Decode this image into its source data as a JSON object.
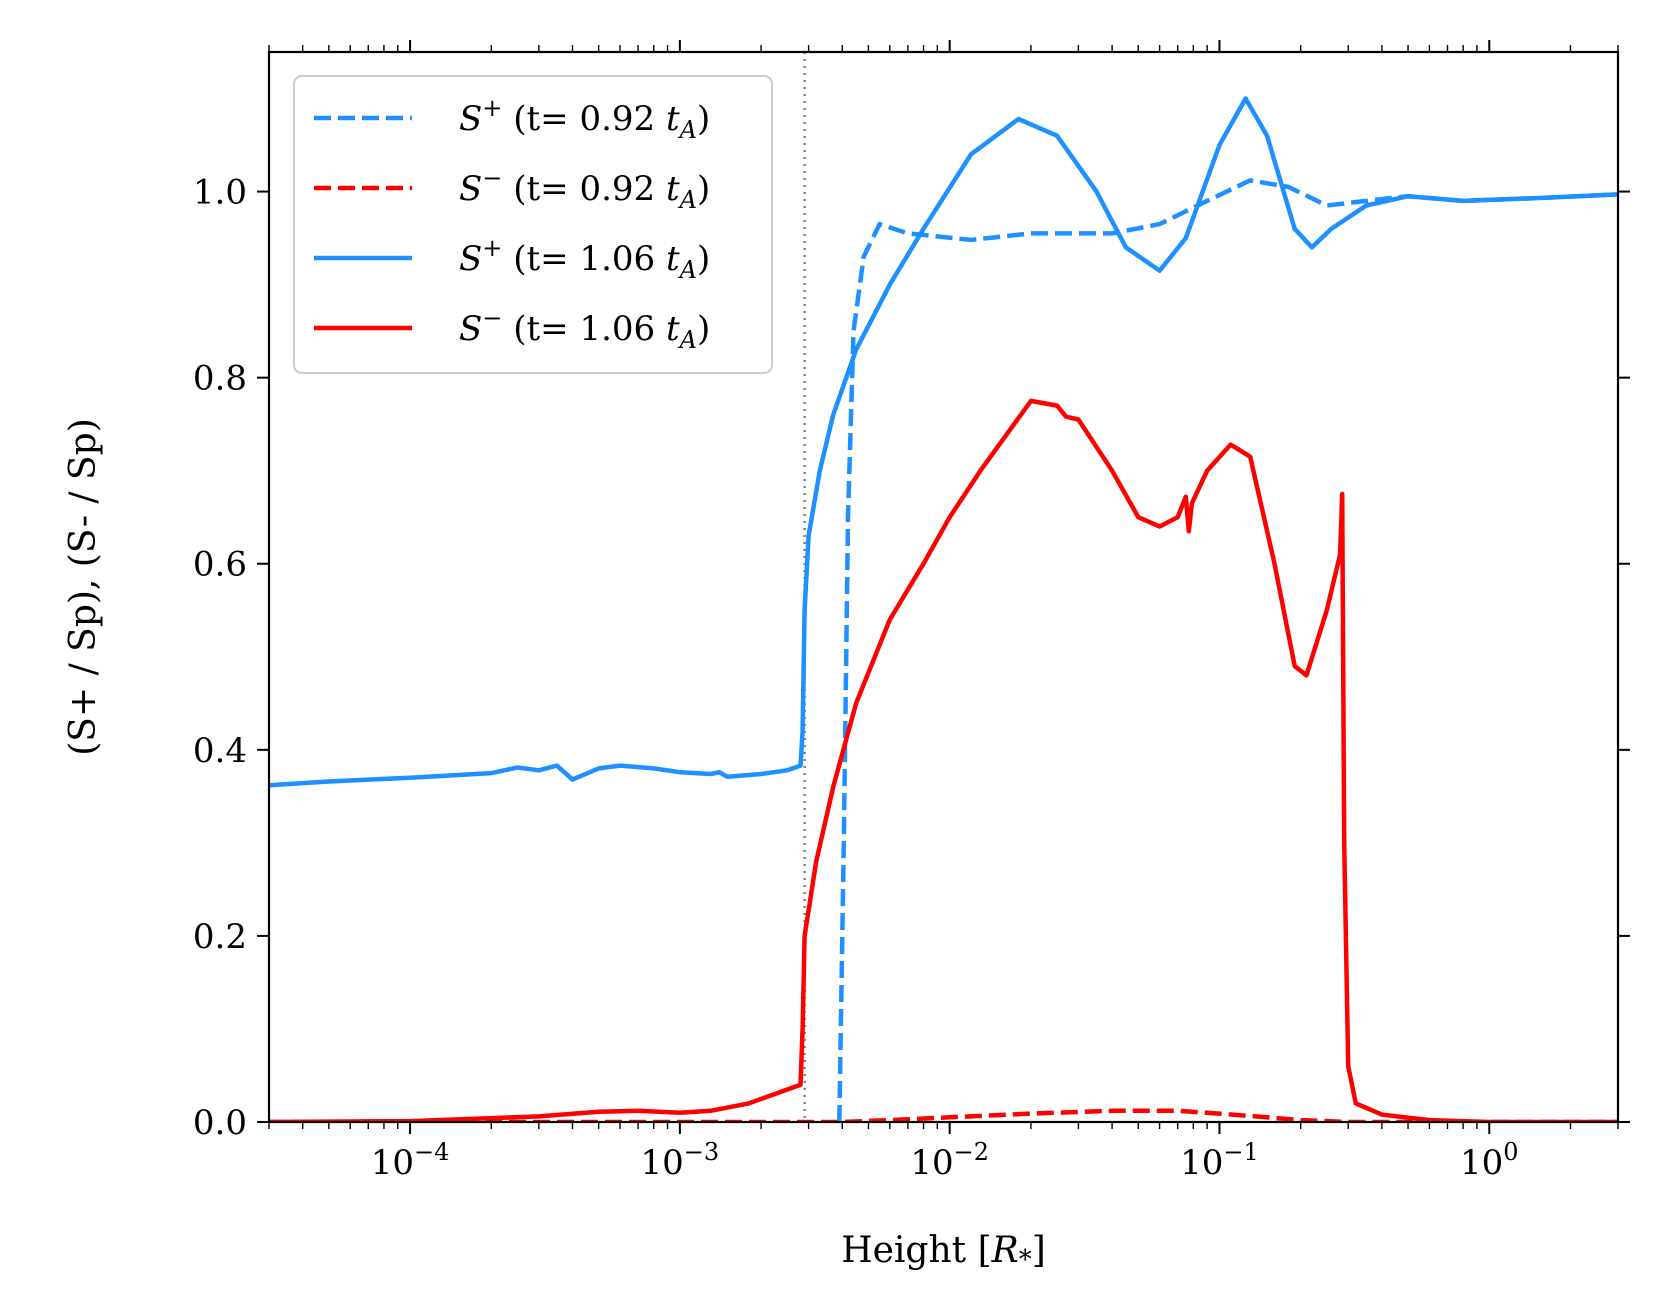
{
  "chart_data": {
    "type": "line",
    "title": "",
    "xlabel": "Height [R*]",
    "ylabel": "(S+ / Sp), (S- / Sp)",
    "xscale": "log",
    "xlim": [
      3e-05,
      3.0
    ],
    "ylim": [
      0.0,
      1.15
    ],
    "x_ticks": [
      "10^-4",
      "10^-3",
      "10^-2",
      "10^-1",
      "10^0"
    ],
    "y_ticks": [
      "0.0",
      "0.2",
      "0.4",
      "0.6",
      "0.8",
      "1.0"
    ],
    "vertical_marker_x": 0.0029,
    "legend_position": "top-left",
    "series": [
      {
        "name": "S+ (t= 0.92 tA)",
        "color": "#1e90ff",
        "style": "dashed",
        "points": [
          [
            0.0039,
            0.0
          ],
          [
            0.00405,
            0.3
          ],
          [
            0.0042,
            0.65
          ],
          [
            0.0044,
            0.85
          ],
          [
            0.0048,
            0.93
          ],
          [
            0.0055,
            0.965
          ],
          [
            0.007,
            0.955
          ],
          [
            0.012,
            0.948
          ],
          [
            0.02,
            0.955
          ],
          [
            0.04,
            0.955
          ],
          [
            0.06,
            0.965
          ],
          [
            0.09,
            0.99
          ],
          [
            0.13,
            1.012
          ],
          [
            0.18,
            1.005
          ],
          [
            0.25,
            0.985
          ],
          [
            0.35,
            0.99
          ],
          [
            0.5,
            0.995
          ],
          [
            0.8,
            0.99
          ],
          [
            1.5,
            0.993
          ],
          [
            3.0,
            0.997
          ]
        ]
      },
      {
        "name": "S- (t= 0.92 tA)",
        "color": "#ff0000",
        "style": "dashed",
        "points": [
          [
            3e-05,
            0.0
          ],
          [
            0.004,
            0.0
          ],
          [
            0.006,
            0.002
          ],
          [
            0.01,
            0.005
          ],
          [
            0.02,
            0.009
          ],
          [
            0.04,
            0.012
          ],
          [
            0.07,
            0.012
          ],
          [
            0.1,
            0.009
          ],
          [
            0.15,
            0.005
          ],
          [
            0.2,
            0.002
          ],
          [
            0.3,
            0.0
          ],
          [
            3.0,
            0.0
          ]
        ]
      },
      {
        "name": "S+ (t= 1.06 tA)",
        "color": "#1e90ff",
        "style": "solid",
        "points": [
          [
            3e-05,
            0.362
          ],
          [
            5e-05,
            0.366
          ],
          [
            0.0001,
            0.37
          ],
          [
            0.0002,
            0.375
          ],
          [
            0.00025,
            0.381
          ],
          [
            0.0003,
            0.378
          ],
          [
            0.00035,
            0.383
          ],
          [
            0.0004,
            0.368
          ],
          [
            0.0005,
            0.38
          ],
          [
            0.0006,
            0.383
          ],
          [
            0.0008,
            0.38
          ],
          [
            0.001,
            0.376
          ],
          [
            0.0013,
            0.374
          ],
          [
            0.0014,
            0.376
          ],
          [
            0.0015,
            0.371
          ],
          [
            0.002,
            0.374
          ],
          [
            0.0025,
            0.378
          ],
          [
            0.0028,
            0.383
          ],
          [
            0.00285,
            0.42
          ],
          [
            0.0029,
            0.55
          ],
          [
            0.003,
            0.63
          ],
          [
            0.0033,
            0.7
          ],
          [
            0.0037,
            0.76
          ],
          [
            0.0045,
            0.83
          ],
          [
            0.006,
            0.9
          ],
          [
            0.008,
            0.96
          ],
          [
            0.012,
            1.04
          ],
          [
            0.018,
            1.078
          ],
          [
            0.025,
            1.06
          ],
          [
            0.035,
            1.0
          ],
          [
            0.045,
            0.94
          ],
          [
            0.06,
            0.915
          ],
          [
            0.075,
            0.95
          ],
          [
            0.1,
            1.05
          ],
          [
            0.125,
            1.1
          ],
          [
            0.15,
            1.06
          ],
          [
            0.19,
            0.96
          ],
          [
            0.22,
            0.94
          ],
          [
            0.26,
            0.96
          ],
          [
            0.35,
            0.985
          ],
          [
            0.5,
            0.995
          ],
          [
            0.8,
            0.99
          ],
          [
            1.5,
            0.993
          ],
          [
            3.0,
            0.997
          ]
        ]
      },
      {
        "name": "S- (t= 1.06 tA)",
        "color": "#ff0000",
        "style": "solid",
        "points": [
          [
            3e-05,
            0.0
          ],
          [
            0.0001,
            0.001
          ],
          [
            0.0003,
            0.006
          ],
          [
            0.0005,
            0.011
          ],
          [
            0.0007,
            0.012
          ],
          [
            0.001,
            0.01
          ],
          [
            0.0013,
            0.012
          ],
          [
            0.0018,
            0.02
          ],
          [
            0.0024,
            0.033
          ],
          [
            0.0028,
            0.04
          ],
          [
            0.00285,
            0.1
          ],
          [
            0.0029,
            0.2
          ],
          [
            0.0032,
            0.28
          ],
          [
            0.0037,
            0.36
          ],
          [
            0.0045,
            0.45
          ],
          [
            0.006,
            0.54
          ],
          [
            0.008,
            0.6
          ],
          [
            0.01,
            0.65
          ],
          [
            0.013,
            0.7
          ],
          [
            0.02,
            0.775
          ],
          [
            0.025,
            0.77
          ],
          [
            0.027,
            0.758
          ],
          [
            0.03,
            0.755
          ],
          [
            0.04,
            0.7
          ],
          [
            0.05,
            0.65
          ],
          [
            0.06,
            0.64
          ],
          [
            0.07,
            0.65
          ],
          [
            0.075,
            0.672
          ],
          [
            0.077,
            0.635
          ],
          [
            0.079,
            0.665
          ],
          [
            0.09,
            0.7
          ],
          [
            0.11,
            0.728
          ],
          [
            0.13,
            0.715
          ],
          [
            0.16,
            0.6
          ],
          [
            0.19,
            0.49
          ],
          [
            0.21,
            0.48
          ],
          [
            0.25,
            0.55
          ],
          [
            0.28,
            0.61
          ],
          [
            0.285,
            0.675
          ],
          [
            0.29,
            0.3
          ],
          [
            0.3,
            0.06
          ],
          [
            0.32,
            0.02
          ],
          [
            0.4,
            0.008
          ],
          [
            0.6,
            0.002
          ],
          [
            1.0,
            0.0
          ],
          [
            3.0,
            0.0
          ]
        ]
      }
    ]
  }
}
